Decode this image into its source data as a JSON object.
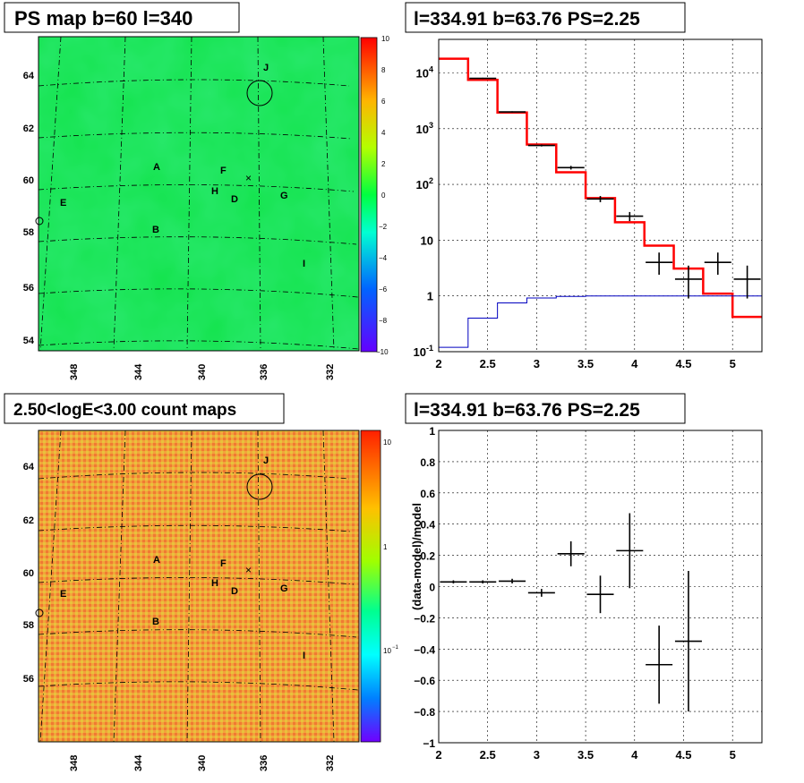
{
  "panels": {
    "ps_map": {
      "title": "PS map b=60 l=340",
      "colorbar_ticks": [
        "10",
        "8",
        "6",
        "4",
        "2",
        "0",
        "−2",
        "−4",
        "−6",
        "−8",
        "−10"
      ],
      "x_ticks": [
        "348",
        "344",
        "340",
        "336",
        "332"
      ],
      "y_ticks": [
        "64",
        "62",
        "60",
        "58",
        "56",
        "54"
      ],
      "base_color": "#12e34b"
    },
    "count_map": {
      "title": "2.50<logE<3.00 count maps",
      "colorbar_ticks": [
        "10",
        "1",
        "10"
      ],
      "colorbar_exponents": [
        "",
        "",
        "−1"
      ],
      "x_ticks": [
        "348",
        "344",
        "340",
        "336",
        "332"
      ],
      "y_ticks": [
        "64",
        "62",
        "60",
        "58",
        "56"
      ]
    },
    "source_labels": [
      "A",
      "B",
      "D",
      "E",
      "F",
      "G",
      "H",
      "I",
      "J"
    ]
  },
  "chart_data": [
    {
      "type": "line",
      "title": "l=334.91 b=63.76 PS=2.25",
      "xlabel": "",
      "ylabel": "",
      "xlim": [
        2,
        5.3
      ],
      "ylim": [
        0.1,
        40000
      ],
      "y_scale": "log",
      "grid": true,
      "x_ticks": [
        "2",
        "2.5",
        "3",
        "3.5",
        "4",
        "4.5",
        "5"
      ],
      "y_tick_labels": [
        "10^-1",
        "1",
        "10",
        "10^2",
        "10^3",
        "10^4"
      ],
      "series": [
        {
          "style": "step",
          "color": "#ff0000",
          "bin_edges": [
            2.0,
            2.3,
            2.6,
            2.9,
            3.2,
            3.5,
            3.8,
            4.1,
            4.4,
            4.7,
            5.0,
            5.3
          ],
          "values": [
            18000,
            7500,
            1950,
            520,
            165,
            57,
            21,
            8,
            3.1,
            1.1,
            0.42
          ]
        },
        {
          "style": "step",
          "color": "#0000c0",
          "bin_edges": [
            2.0,
            2.3,
            2.6,
            2.9,
            3.2,
            3.5,
            3.8,
            4.1,
            4.4,
            4.7,
            5.0,
            5.3
          ],
          "values": [
            0.12,
            0.4,
            0.75,
            0.92,
            0.98,
            1,
            1,
            1,
            1,
            1,
            1
          ]
        },
        {
          "style": "errorbar",
          "color": "#000000",
          "x": [
            2.45,
            2.75,
            3.05,
            3.35,
            3.65,
            3.95,
            4.25,
            4.55,
            4.85,
            5.15
          ],
          "y": [
            8000,
            2000,
            500,
            200,
            55,
            27,
            4,
            2,
            4,
            2
          ],
          "yerr_low": [
            7800,
            1950,
            480,
            185,
            48,
            22,
            2.4,
            0.9,
            2.4,
            0.9
          ],
          "yerr_high": [
            8200,
            2050,
            520,
            215,
            62,
            32,
            6,
            3.5,
            6,
            3.5
          ]
        }
      ]
    },
    {
      "type": "scatter",
      "title": "l=334.91 b=63.76 PS=2.25",
      "xlabel": "",
      "ylabel": "(data-model)/model",
      "xlim": [
        2,
        5.3
      ],
      "ylim": [
        -1,
        1
      ],
      "grid": true,
      "x_ticks": [
        "2",
        "2.5",
        "3",
        "3.5",
        "4",
        "4.5",
        "5"
      ],
      "y_ticks": [
        "1",
        "0.8",
        "0.6",
        "0.4",
        "0.2",
        "0",
        "−0.2",
        "−0.4",
        "−0.6",
        "−0.8",
        "−1"
      ],
      "series": [
        {
          "style": "errorbar",
          "color": "#000000",
          "x": [
            2.15,
            2.45,
            2.75,
            3.05,
            3.35,
            3.65,
            3.95,
            4.25,
            4.55
          ],
          "y": [
            0.03,
            0.03,
            0.035,
            -0.04,
            0.21,
            -0.05,
            0.23,
            -0.5,
            -0.35
          ],
          "yerr": [
            0.01,
            0.01,
            0.015,
            0.025,
            0.08,
            0.12,
            0.24,
            0.25,
            0.45
          ]
        }
      ]
    }
  ]
}
